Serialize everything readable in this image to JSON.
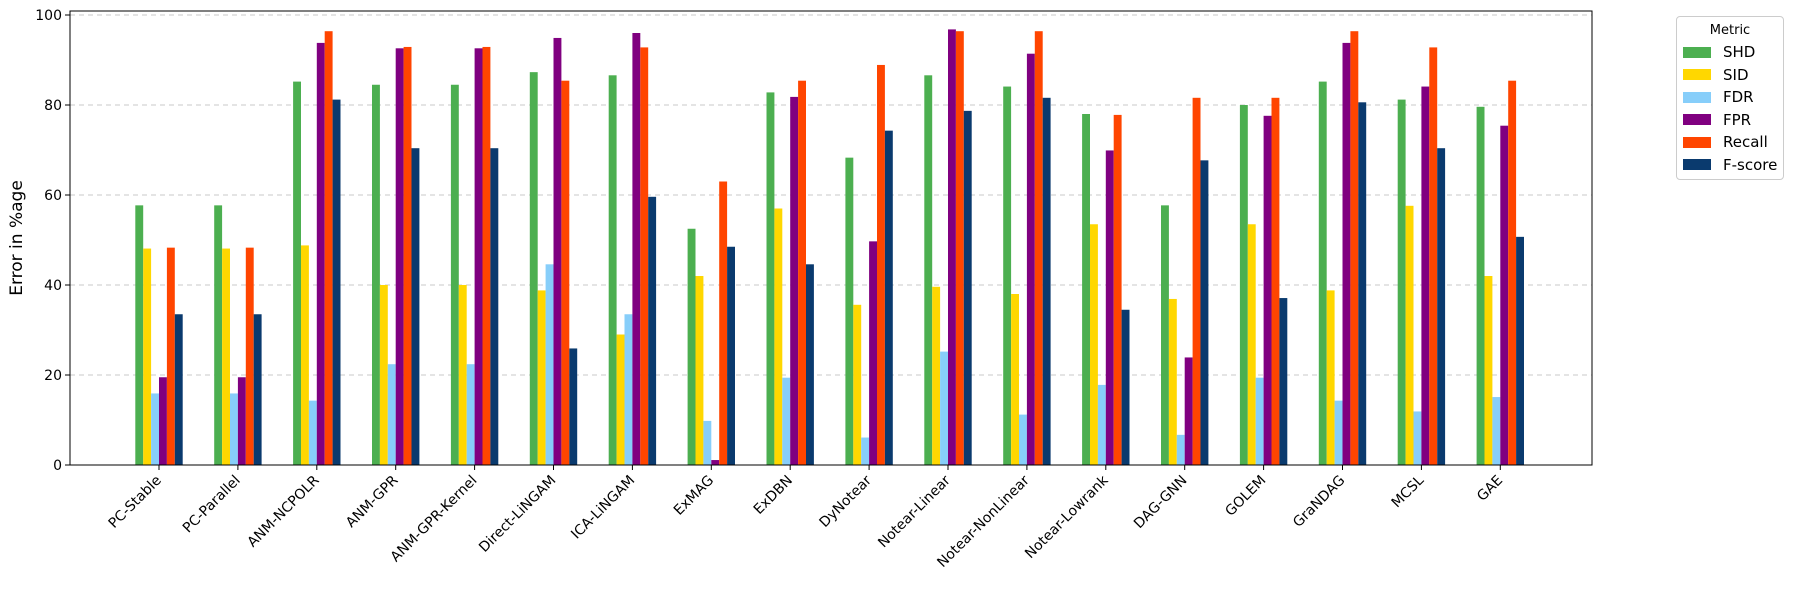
{
  "chart_data": {
    "type": "bar",
    "title": "",
    "xlabel": "",
    "ylabel": "Error in %age",
    "ylim": [
      0,
      100
    ],
    "yticks": [
      0,
      20,
      40,
      60,
      80,
      100
    ],
    "grid": "y-dashed",
    "legend": {
      "title": "Metric",
      "placement": "outside-top-right"
    },
    "categories": [
      "PC-Stable",
      "PC-Parallel",
      "ANM-NCPOLR",
      "ANM-GPR",
      "ANM-GPR-Kernel",
      "Direct-LiNGAM",
      "ICA-LiNGAM",
      "ExMAG",
      "ExDBN",
      "DyNotear",
      "Notear-Linear",
      "Notear-NonLinear",
      "Notear-Lowrank",
      "DAG-GNN",
      "GOLEM",
      "GraNDAG",
      "MCSL",
      "GAE"
    ],
    "series": [
      {
        "name": "SHD",
        "color": "#4caf50",
        "values": [
          57.7,
          57.7,
          85.2,
          84.5,
          84.5,
          87.3,
          86.6,
          52.5,
          82.8,
          68.3,
          86.6,
          84.1,
          78.0,
          57.7,
          80.0,
          85.2,
          81.2,
          79.6
        ]
      },
      {
        "name": "SID",
        "color": "#ffd700",
        "values": [
          48.1,
          48.1,
          48.8,
          40.0,
          40.0,
          38.8,
          29.0,
          42.0,
          57.0,
          35.6,
          39.6,
          38.0,
          53.5,
          36.9,
          53.5,
          38.8,
          57.6,
          42.0
        ]
      },
      {
        "name": "FDR",
        "color": "#87cefa",
        "values": [
          15.9,
          15.9,
          14.3,
          22.4,
          22.4,
          44.6,
          33.5,
          9.8,
          19.4,
          6.1,
          25.2,
          11.2,
          17.8,
          6.7,
          19.4,
          14.3,
          11.9,
          15.1
        ]
      },
      {
        "name": "FPR",
        "color": "#800080",
        "values": [
          19.5,
          19.5,
          93.8,
          92.6,
          92.6,
          94.9,
          96.0,
          1.1,
          81.8,
          49.7,
          96.8,
          91.4,
          69.9,
          23.9,
          77.6,
          93.8,
          84.1,
          75.4
        ]
      },
      {
        "name": "Recall",
        "color": "#ff4500",
        "values": [
          48.3,
          48.3,
          96.4,
          92.9,
          92.9,
          85.4,
          92.8,
          63.0,
          85.4,
          88.9,
          96.4,
          96.4,
          77.8,
          81.6,
          81.6,
          96.4,
          92.8,
          85.4
        ]
      },
      {
        "name": "F-score",
        "color": "#0a3a6e",
        "values": [
          33.5,
          33.5,
          81.2,
          70.4,
          70.4,
          25.9,
          59.6,
          48.5,
          44.6,
          74.3,
          78.7,
          81.6,
          34.5,
          67.7,
          37.1,
          80.6,
          70.4,
          50.7
        ]
      }
    ]
  }
}
